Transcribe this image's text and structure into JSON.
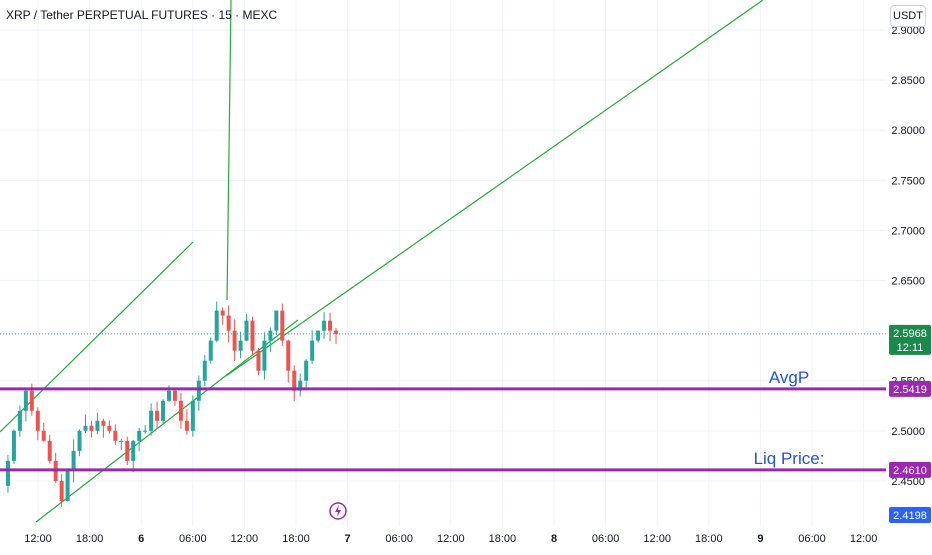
{
  "header": {
    "title": "XRP / Tether PERPETUAL FUTURES · 15 · MEXC",
    "currency_button": "USDT"
  },
  "colors": {
    "up": "#26a69a",
    "down": "#ef5350",
    "trendline": "#22ab3a",
    "level_line": "#9c27b0",
    "price_label_bg": "#1a8a4a",
    "blue_label_bg": "#2962ff",
    "annotation_text": "#1e53e5",
    "grid": "#f0f3fa"
  },
  "chart_data": {
    "type": "candlestick",
    "symbol": "XRP / Tether PERPETUAL FUTURES",
    "interval": "15",
    "exchange": "MEXC",
    "y_axis": {
      "range": [
        2.405,
        2.93
      ],
      "ticks": [
        "2.9000",
        "2.8500",
        "2.8000",
        "2.7500",
        "2.7000",
        "2.6500",
        "2.5500",
        "2.5000",
        "2.4500"
      ]
    },
    "x_axis": {
      "ticks": [
        "12:00",
        "18:00",
        "6",
        "06:00",
        "12:00",
        "18:00",
        "7",
        "06:00",
        "12:00",
        "18:00",
        "8",
        "06:00",
        "12:00",
        "18:00",
        "9",
        "06:00",
        "12:00"
      ],
      "bold_ticks": [
        "6",
        "7",
        "8",
        "9"
      ]
    },
    "current_price": {
      "value": "2.5968",
      "countdown": "12:11"
    },
    "levels": [
      {
        "name": "AvgP",
        "value": "2.5419"
      },
      {
        "name": "Liq Price:",
        "value": "2.4610"
      }
    ],
    "low_label": "2.4198",
    "price_path": [
      2.445,
      2.47,
      2.5,
      2.52,
      2.54,
      2.52,
      2.5,
      2.49,
      2.47,
      2.45,
      2.43,
      2.46,
      2.48,
      2.5,
      2.505,
      2.5,
      2.51,
      2.505,
      2.5,
      2.49,
      2.49,
      2.47,
      2.49,
      2.5,
      2.5,
      2.52,
      2.51,
      2.53,
      2.54,
      2.53,
      2.51,
      2.5,
      2.53,
      2.55,
      2.57,
      2.59,
      2.62,
      2.615,
      2.6,
      2.58,
      2.59,
      2.61,
      2.58,
      2.56,
      2.59,
      2.6,
      2.62,
      2.59,
      2.56,
      2.54,
      2.55,
      2.57,
      2.59,
      2.6,
      2.61,
      2.6,
      2.5968
    ]
  }
}
